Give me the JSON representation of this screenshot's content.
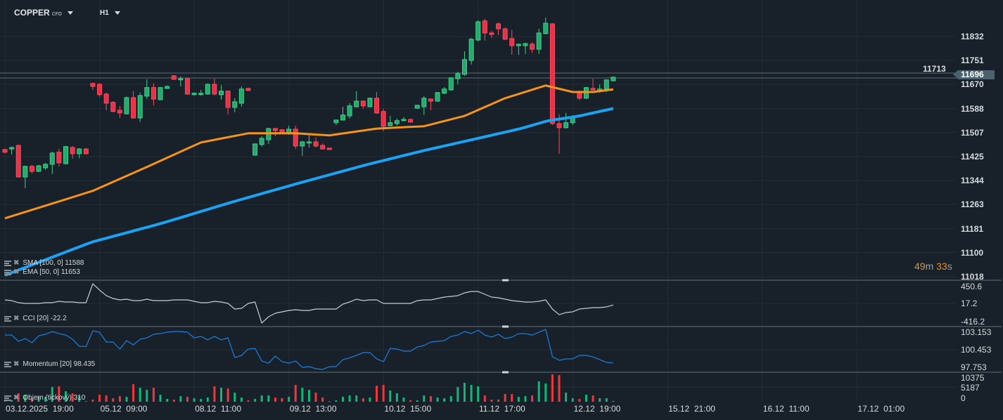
{
  "header": {
    "symbol": "COPPER",
    "symbol_type": "CFD",
    "timeframe": "H1"
  },
  "price_axis": {
    "labels": [
      "11832",
      "11751",
      "11670",
      "11588",
      "11507",
      "11425",
      "11344",
      "11263",
      "11181",
      "11100",
      "11018"
    ],
    "hidden_label": "11713",
    "current_price": "11696"
  },
  "countdown": {
    "minutes": "49",
    "m_unit": "m",
    "seconds": "33",
    "s_unit": "s"
  },
  "time_axis": [
    "03.12.2025  19:00",
    "05.12  09:00",
    "08.12  11:00",
    "09.12  13:00",
    "10.12  15:00",
    "11.12  17:00",
    "12.12  19:00",
    "15.12  21:00",
    "16.12  11:00",
    "17.12  01:00"
  ],
  "legends": {
    "sma": "SMA [100, 0]  11588",
    "ema": "EMA [50, 0]  11653",
    "cci": "CCI  [20]  -22.2",
    "momentum": "Momentum  [20]  98.435",
    "volume": "Objem  (tickový)  310"
  },
  "cci_axis": [
    "450.6",
    "17.2",
    "-416.2"
  ],
  "momentum_axis": [
    "103.153",
    "100.453",
    "97.753"
  ],
  "volume_axis": [
    "10375",
    "5187",
    "0"
  ],
  "colors": {
    "up": "#26a96c",
    "down": "#e6334a",
    "ema": "#f7931a",
    "sma": "#1da1f2",
    "cci": "#c8ccd0",
    "momentum": "#1a7fe0",
    "background": "#18212a"
  },
  "chart_data": {
    "type": "candlestick",
    "symbol": "COPPER",
    "ylim": [
      11018,
      11832
    ],
    "ohlc": [
      [
        11449,
        11451,
        11435,
        11440
      ],
      [
        11451,
        11459,
        11432,
        11456
      ],
      [
        11463,
        11466,
        11354,
        11356
      ],
      [
        11356,
        11394,
        11318,
        11392
      ],
      [
        11392,
        11397,
        11368,
        11375
      ],
      [
        11375,
        11397,
        11373,
        11394
      ],
      [
        11387,
        11404,
        11380,
        11399
      ],
      [
        11399,
        11442,
        11366,
        11437
      ],
      [
        11440,
        11451,
        11392,
        11404
      ],
      [
        11401,
        11461,
        11399,
        11459
      ],
      [
        11456,
        11461,
        11418,
        11435
      ],
      [
        11435,
        11454,
        11420,
        11451
      ],
      [
        11451,
        11454,
        11432,
        11435
      ],
      [
        11673,
        11675,
        11651,
        11663
      ],
      [
        11670,
        11673,
        11628,
        11635
      ],
      [
        11637,
        11642,
        11582,
        11606
      ],
      [
        11609,
        11613,
        11575,
        11578
      ],
      [
        11582,
        11597,
        11556,
        11573
      ],
      [
        11570,
        11628,
        11568,
        11625
      ],
      [
        11625,
        11647,
        11554,
        11556
      ],
      [
        11556,
        11642,
        11542,
        11632
      ],
      [
        11630,
        11687,
        11620,
        11659
      ],
      [
        11659,
        11673,
        11599,
        11620
      ],
      [
        11618,
        11661,
        11616,
        11659
      ],
      [
        11656,
        11666,
        11654,
        11663
      ],
      [
        11699,
        11701,
        11685,
        11687
      ],
      [
        11685,
        11697,
        11663,
        11689
      ],
      [
        11689,
        11692,
        11635,
        11637
      ],
      [
        11635,
        11642,
        11632,
        11640
      ],
      [
        11635,
        11651,
        11632,
        11640
      ],
      [
        11637,
        11673,
        11635,
        11670
      ],
      [
        11670,
        11689,
        11632,
        11637
      ],
      [
        11635,
        11668,
        11618,
        11647
      ],
      [
        11647,
        11649,
        11568,
        11592
      ],
      [
        11592,
        11623,
        11575,
        11611
      ],
      [
        11606,
        11663,
        11594,
        11654
      ],
      [
        11656,
        11659,
        11647,
        11649
      ],
      [
        11430,
        11470,
        11428,
        11468
      ],
      [
        11466,
        11494,
        11459,
        11487
      ],
      [
        11482,
        11523,
        11468,
        11520
      ],
      [
        11520,
        11523,
        11494,
        11513
      ],
      [
        11516,
        11518,
        11504,
        11506
      ],
      [
        11506,
        11530,
        11499,
        11518
      ],
      [
        11518,
        11530,
        11451,
        11461
      ],
      [
        11461,
        11478,
        11428,
        11475
      ],
      [
        11471,
        11497,
        11456,
        11475
      ],
      [
        11475,
        11490,
        11456,
        11461
      ],
      [
        11463,
        11470,
        11449,
        11451
      ],
      [
        11454,
        11454,
        11449,
        11449
      ],
      [
        11540,
        11551,
        11532,
        11549
      ],
      [
        11549,
        11594,
        11547,
        11566
      ],
      [
        11563,
        11606,
        11554,
        11597
      ],
      [
        11594,
        11647,
        11592,
        11613
      ],
      [
        11613,
        11616,
        11587,
        11597
      ],
      [
        11594,
        11625,
        11592,
        11623
      ],
      [
        11623,
        11644,
        11570,
        11573
      ],
      [
        11578,
        11587,
        11511,
        11528
      ],
      [
        11530,
        11563,
        11528,
        11540
      ],
      [
        11537,
        11554,
        11530,
        11547
      ],
      [
        11547,
        11559,
        11544,
        11551
      ],
      [
        11551,
        11554,
        11540,
        11542
      ],
      [
        11589,
        11601,
        11587,
        11599
      ],
      [
        11594,
        11630,
        11566,
        11623
      ],
      [
        11620,
        11623,
        11582,
        11613
      ],
      [
        11613,
        11644,
        11611,
        11642
      ],
      [
        11640,
        11661,
        11637,
        11654
      ],
      [
        11651,
        11694,
        11649,
        11692
      ],
      [
        11689,
        11713,
        11670,
        11706
      ],
      [
        11704,
        11782,
        11699,
        11754
      ],
      [
        11751,
        11827,
        11737,
        11823
      ],
      [
        11820,
        11887,
        11816,
        11882
      ],
      [
        11885,
        11892,
        11818,
        11844
      ],
      [
        11844,
        11851,
        11827,
        11839
      ],
      [
        11875,
        11880,
        11837,
        11858
      ],
      [
        11858,
        11863,
        11820,
        11823
      ],
      [
        11825,
        11854,
        11770,
        11801
      ],
      [
        11801,
        11808,
        11770,
        11806
      ],
      [
        11801,
        11811,
        11773,
        11808
      ],
      [
        11806,
        11813,
        11777,
        11789
      ],
      [
        11789,
        11858,
        11773,
        11844
      ],
      [
        11842,
        11896,
        11839,
        11877
      ],
      [
        11875,
        11877,
        11532,
        11537
      ],
      [
        11537,
        11568,
        11435,
        11523
      ],
      [
        11523,
        11573,
        11520,
        11540
      ],
      [
        11540,
        11566,
        11532,
        11561
      ],
      [
        11644,
        11649,
        11616,
        11623
      ],
      [
        11623,
        11661,
        11620,
        11659
      ],
      [
        11656,
        11689,
        11649,
        11651
      ],
      [
        11649,
        11670,
        11642,
        11654
      ],
      [
        11654,
        11687,
        11644,
        11685
      ],
      [
        11682,
        11697,
        11680,
        11694
      ]
    ],
    "ema50_anchors": [
      [
        0,
        11216
      ],
      [
        13,
        11309
      ],
      [
        21,
        11390
      ],
      [
        29,
        11473
      ],
      [
        36,
        11504
      ],
      [
        43,
        11504
      ],
      [
        48,
        11497
      ],
      [
        55,
        11520
      ],
      [
        62,
        11528
      ],
      [
        68,
        11563
      ],
      [
        74,
        11623
      ],
      [
        80,
        11666
      ],
      [
        84,
        11644
      ],
      [
        87,
        11644
      ],
      [
        90,
        11653
      ]
    ],
    "sma100_anchors": [
      [
        0,
        11023
      ],
      [
        12.8,
        11135
      ],
      [
        23.2,
        11199
      ],
      [
        33.6,
        11271
      ],
      [
        43,
        11332
      ],
      [
        53.4,
        11397
      ],
      [
        61.7,
        11444
      ],
      [
        70,
        11487
      ],
      [
        76.3,
        11520
      ],
      [
        80.4,
        11547
      ],
      [
        84.6,
        11561
      ],
      [
        90,
        11588
      ]
    ],
    "cci": {
      "ylim": [
        -416.2,
        450.6
      ],
      "values": [
        104,
        86,
        35,
        17,
        17,
        17,
        35,
        35,
        69,
        52,
        52,
        35,
        35,
        502,
        346,
        208,
        138,
        104,
        121,
        86,
        86,
        121,
        86,
        86,
        86,
        104,
        104,
        104,
        69,
        35,
        35,
        69,
        52,
        17,
        -121,
        -104,
        17,
        52,
        -467,
        -311,
        -225,
        -190,
        -156,
        -138,
        -156,
        -156,
        -121,
        -121,
        -121,
        -121,
        0,
        52,
        121,
        86,
        104,
        104,
        17,
        17,
        17,
        17,
        17,
        86,
        104,
        104,
        138,
        173,
        190,
        208,
        277,
        311,
        311,
        242,
        173,
        156,
        121,
        86,
        69,
        52,
        52,
        69,
        104,
        -121,
        -260,
        -208,
        -190,
        -121,
        -104,
        -87,
        -87,
        -69,
        -22.2
      ]
    },
    "momentum": {
      "ylim": [
        97.753,
        103.153
      ],
      "values": [
        102.72,
        102.72,
        101.75,
        102.18,
        101.53,
        102.61,
        102.83,
        103.26,
        102.94,
        102.72,
        102.07,
        100.99,
        100.95,
        103.37,
        103.15,
        101.64,
        101.64,
        100.56,
        101.86,
        101.21,
        102.07,
        102.29,
        102.83,
        102.94,
        103.15,
        103.26,
        103.26,
        103.15,
        102.29,
        102.51,
        101.97,
        102.51,
        101.97,
        102.29,
        99.26,
        99.59,
        100.56,
        100.67,
        98.73,
        98.4,
        99.48,
        98.62,
        98.4,
        98.73,
        97.75,
        97.86,
        97.54,
        97.43,
        97.86,
        97.86,
        98.94,
        99.2,
        99.59,
        100.02,
        100.02,
        99.05,
        98.62,
        100.67,
        100.56,
        100.24,
        100.24,
        100.89,
        101.1,
        101.64,
        101.75,
        101.86,
        102.51,
        102.72,
        103.26,
        102.94,
        103.48,
        102.72,
        102.4,
        102.83,
        102.18,
        102.4,
        102.94,
        102.94,
        102.72,
        103.15,
        103.59,
        99.37,
        98.83,
        99.05,
        99.05,
        99.59,
        99.59,
        99.37,
        98.94,
        98.51,
        98.435
      ]
    },
    "volume": {
      "ylim": [
        0,
        10375
      ],
      "values": [
        590,
        590,
        3550,
        2960,
        1480,
        2070,
        2070,
        6220,
        6510,
        4440,
        3550,
        2370,
        300,
        890,
        2960,
        2660,
        1480,
        2370,
        2070,
        7400,
        5920,
        5030,
        5920,
        2960,
        1180,
        890,
        2370,
        2070,
        1480,
        1180,
        1780,
        6510,
        5920,
        5620,
        3850,
        1780,
        590,
        1180,
        2660,
        2660,
        1780,
        1480,
        2070,
        7100,
        5920,
        5030,
        3850,
        1780,
        300,
        590,
        2070,
        2660,
        2660,
        1480,
        1780,
        6810,
        7100,
        4740,
        3550,
        1780,
        590,
        590,
        2660,
        2370,
        1780,
        1480,
        2370,
        6220,
        7990,
        7100,
        6510,
        2660,
        890,
        890,
        3260,
        3260,
        2070,
        2370,
        2660,
        8580,
        7700,
        11540,
        11250,
        3850,
        1480,
        1180,
        2960,
        2660,
        1480,
        1480,
        310
      ]
    }
  }
}
